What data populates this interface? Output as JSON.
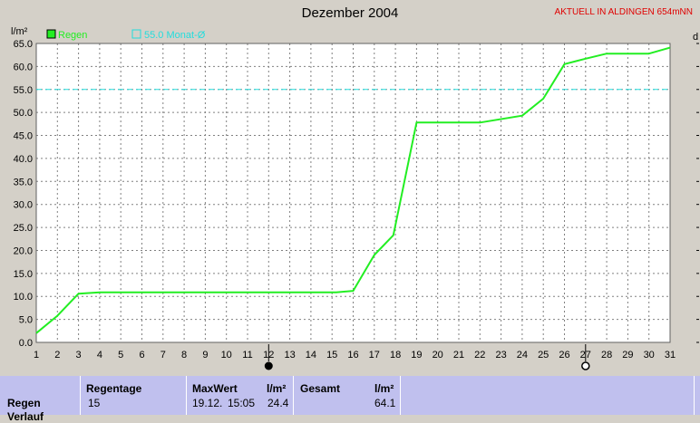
{
  "title": "Dezember 2004",
  "status_label": "AKTUELL IN ALDINGEN 654mNN",
  "right_axis_fragment": "d",
  "chart_data": {
    "type": "line",
    "title": "Dezember 2004",
    "ylabel": "l/m²",
    "xlabel": "",
    "x": [
      1,
      2,
      3,
      4,
      5,
      6,
      7,
      8,
      9,
      10,
      11,
      12,
      13,
      14,
      15,
      16,
      17,
      18,
      19,
      20,
      21,
      22,
      23,
      24,
      25,
      26,
      27,
      28,
      29,
      30,
      31
    ],
    "ylim": [
      0,
      65
    ],
    "yticks": [
      "0.0",
      "5.0",
      "10.0",
      "15.0",
      "20.0",
      "25.0",
      "30.0",
      "35.0",
      "40.0",
      "45.0",
      "50.0",
      "55.0",
      "60.0",
      "65.0"
    ],
    "grid": true,
    "series": [
      {
        "name": "Regen",
        "color": "#22ee22",
        "points": [
          [
            1.0,
            2.0
          ],
          [
            2.0,
            5.8
          ],
          [
            3.0,
            10.6
          ],
          [
            4.0,
            10.9
          ],
          [
            15.2,
            10.9
          ],
          [
            16.0,
            11.2
          ],
          [
            17.0,
            19.0
          ],
          [
            17.9,
            23.3
          ],
          [
            19.0,
            47.8
          ],
          [
            22.0,
            47.8
          ],
          [
            24.0,
            49.3
          ],
          [
            25.0,
            53.0
          ],
          [
            26.0,
            60.5
          ],
          [
            27.0,
            61.7
          ],
          [
            28.0,
            62.8
          ],
          [
            30.0,
            62.8
          ],
          [
            31.0,
            64.1
          ]
        ]
      }
    ],
    "reference_line": {
      "name": "55.0 Monat-Ø",
      "value": 55.0,
      "color": "#22dddd"
    },
    "markers": [
      {
        "x": 12,
        "kind": "new-moon"
      },
      {
        "x": 27,
        "kind": "full-moon"
      }
    ],
    "legend_position": "top-left"
  },
  "table": {
    "row_label": "Regen",
    "cut_row_label": "Verlauf",
    "h_regentage": "Regentage",
    "regentage": "15",
    "h_maxwert": "MaxWert",
    "maxwert_date": "19.12.",
    "maxwert_time": "15:05",
    "h_unit1": "l/m²",
    "maxwert_value": "24.4",
    "h_gesamt": "Gesamt",
    "h_unit2": "l/m²",
    "gesamt_value": "64.1"
  }
}
